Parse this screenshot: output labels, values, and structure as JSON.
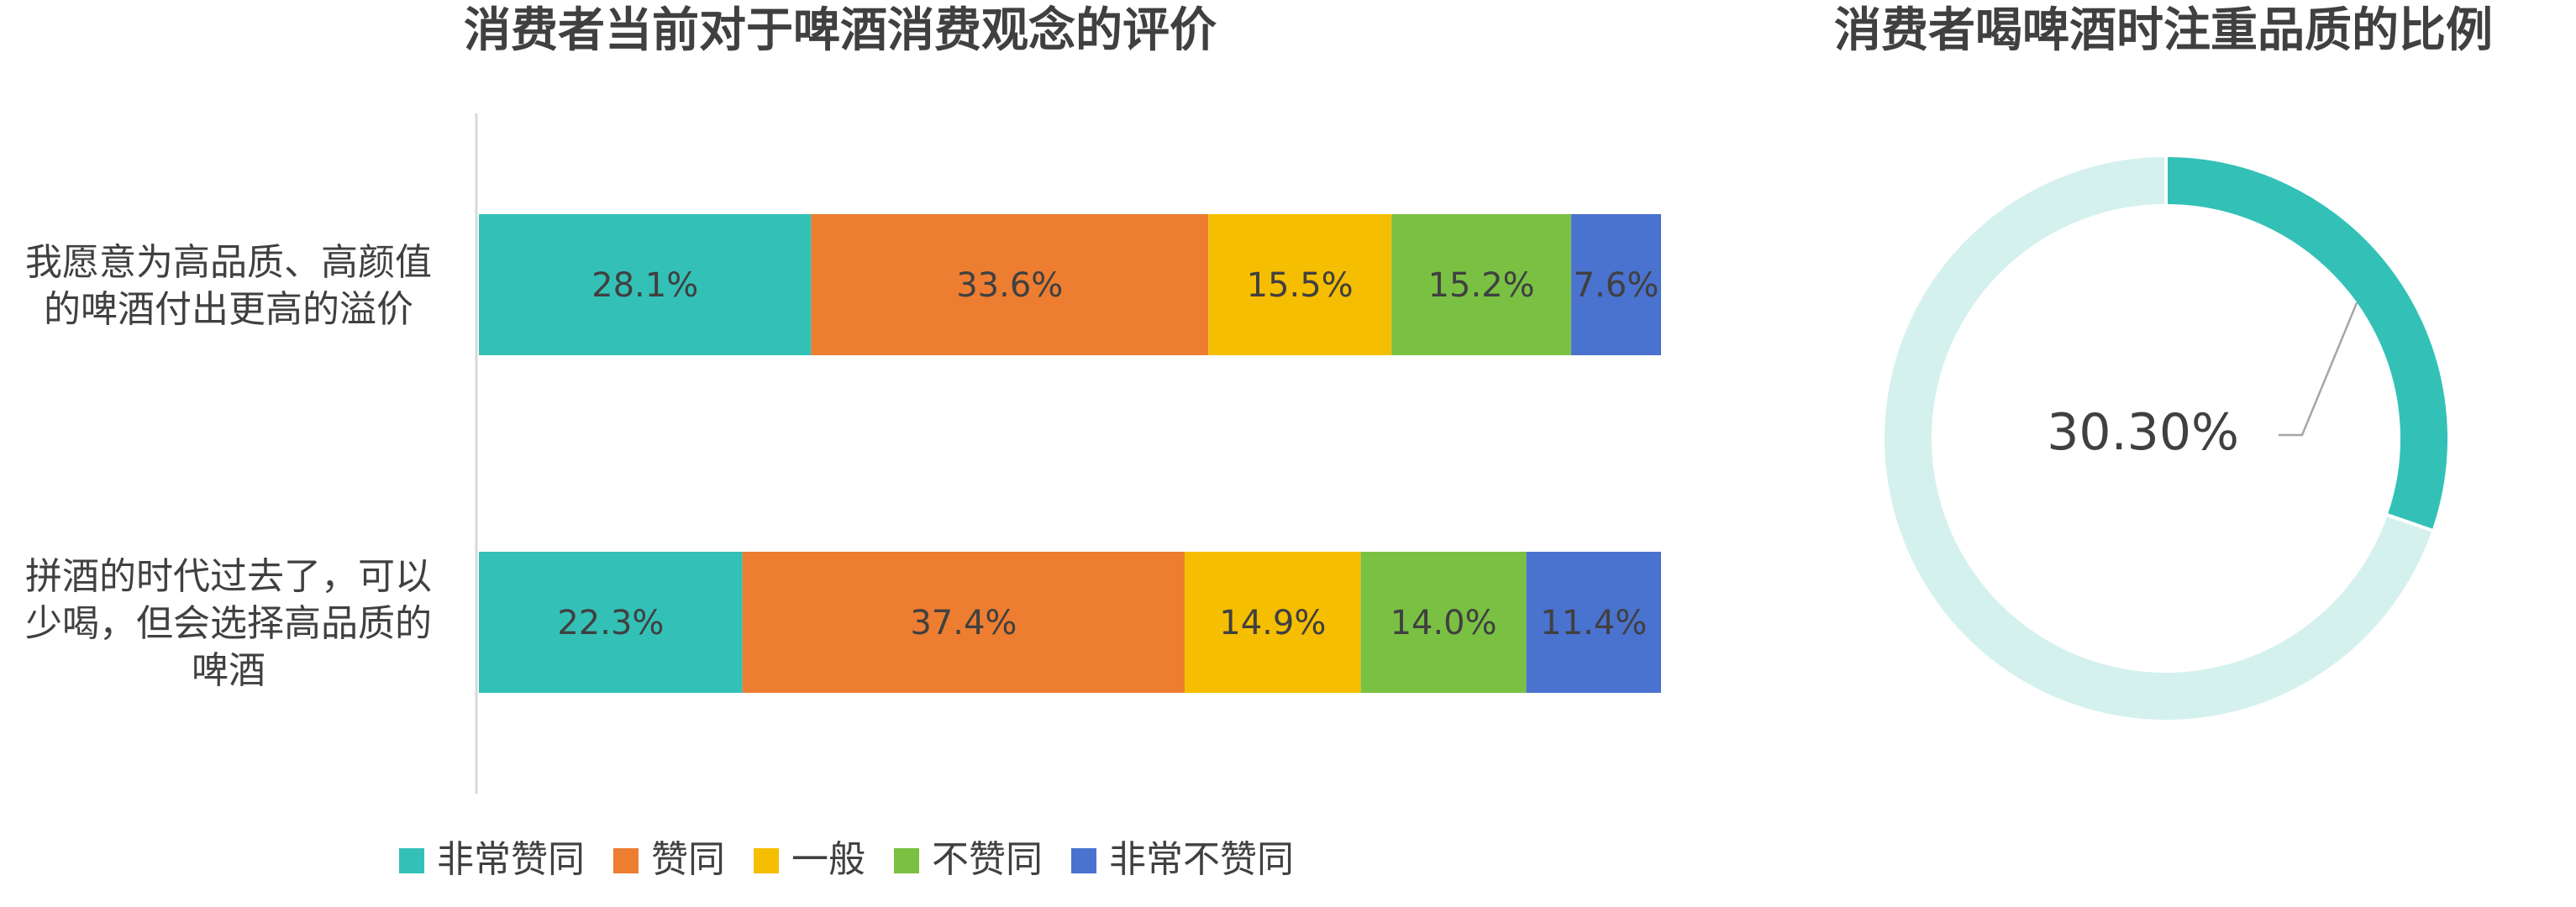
{
  "chart_data": [
    {
      "type": "bar",
      "orientation": "horizontal",
      "stacked": true,
      "title": "消费者当前对于啤酒消费观念的评价",
      "categories": [
        [
          "我愿意为高品质、高颜值",
          "的啤酒付出更高的溢价"
        ],
        [
          "拼酒的时代过去了，可以",
          "少喝，但会选择高品质的",
          "啤酒"
        ]
      ],
      "series": [
        {
          "name": "非常赞同",
          "color": "#33C1B7",
          "values": [
            28.1,
            22.3
          ],
          "labels": [
            "28.1%",
            "22.3%"
          ]
        },
        {
          "name": "赞同",
          "color": "#ED7D31",
          "values": [
            33.6,
            37.4
          ],
          "labels": [
            "33.6%",
            "37.4%"
          ]
        },
        {
          "name": "一般",
          "color": "#F6BE00",
          "values": [
            15.5,
            14.9
          ],
          "labels": [
            "15.5%",
            "14.9%"
          ]
        },
        {
          "name": "不赞同",
          "color": "#7AC143",
          "values": [
            15.2,
            14.0
          ],
          "labels": [
            "15.2%",
            "14.0%"
          ]
        },
        {
          "name": "非常不赞同",
          "color": "#4A72CF",
          "values": [
            7.6,
            11.4
          ],
          "labels": [
            "7.6%",
            "11.4%"
          ]
        }
      ],
      "xlim": [
        0,
        100
      ],
      "legend": "bottom",
      "grid": false
    },
    {
      "type": "pie",
      "donut": true,
      "title": "消费者喝啤酒时注重品质的比例",
      "slices": [
        {
          "value": 30.3,
          "label": "30.30%",
          "color": "#33C1B7"
        },
        {
          "value": 69.7,
          "label": "",
          "color": "#D5F1EE"
        }
      ]
    }
  ]
}
